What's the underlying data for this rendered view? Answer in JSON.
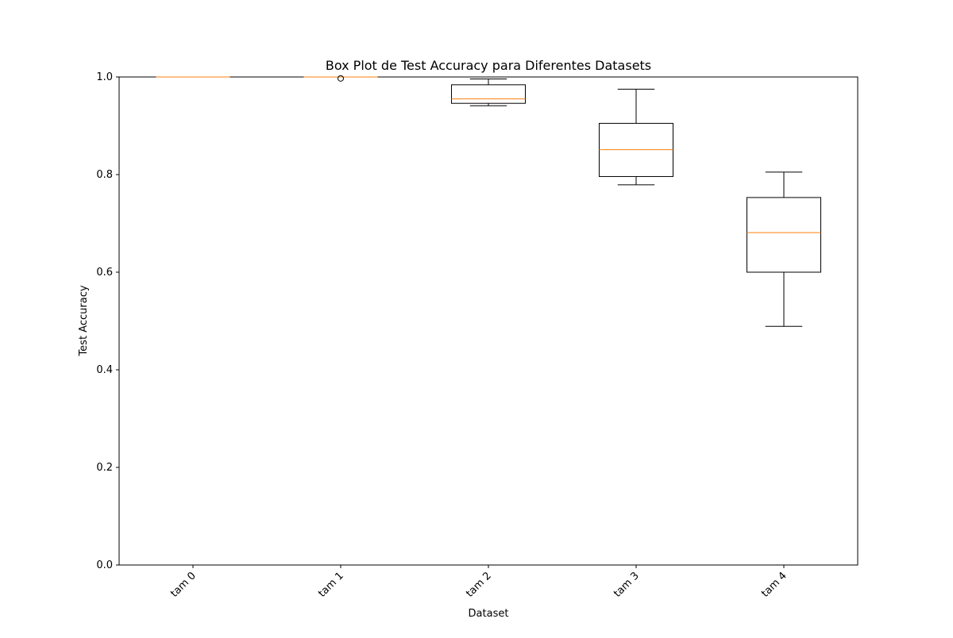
{
  "chart_data": {
    "type": "box",
    "title": "Box Plot de Test Accuracy para Diferentes Datasets",
    "xlabel": "Dataset",
    "ylabel": "Test Accuracy",
    "ylim": [
      0.0,
      1.0
    ],
    "yticks": [
      "0.0",
      "0.2",
      "0.4",
      "0.6",
      "0.8",
      "1.0"
    ],
    "categories": [
      "tam 0",
      "tam 1",
      "tam 2",
      "tam 3",
      "tam 4"
    ],
    "boxes": [
      {
        "category": "tam 0",
        "whisker_low": 1.0,
        "q1": 1.0,
        "median": 1.0,
        "q3": 1.0,
        "whisker_high": 1.0,
        "outliers": []
      },
      {
        "category": "tam 1",
        "whisker_low": 1.0,
        "q1": 1.0,
        "median": 1.0,
        "q3": 1.0,
        "whisker_high": 1.0,
        "outliers": [
          0.997
        ]
      },
      {
        "category": "tam 2",
        "whisker_low": 0.941,
        "q1": 0.946,
        "median": 0.955,
        "q3": 0.984,
        "whisker_high": 0.996,
        "outliers": []
      },
      {
        "category": "tam 3",
        "whisker_low": 0.779,
        "q1": 0.796,
        "median": 0.851,
        "q3": 0.905,
        "whisker_high": 0.975,
        "outliers": []
      },
      {
        "category": "tam 4",
        "whisker_low": 0.489,
        "q1": 0.6,
        "median": 0.681,
        "q3": 0.753,
        "whisker_high": 0.805,
        "outliers": []
      }
    ],
    "grid": false,
    "colors": {
      "box": "#000000",
      "median": "#ff7f0e",
      "axis": "#000000"
    }
  }
}
